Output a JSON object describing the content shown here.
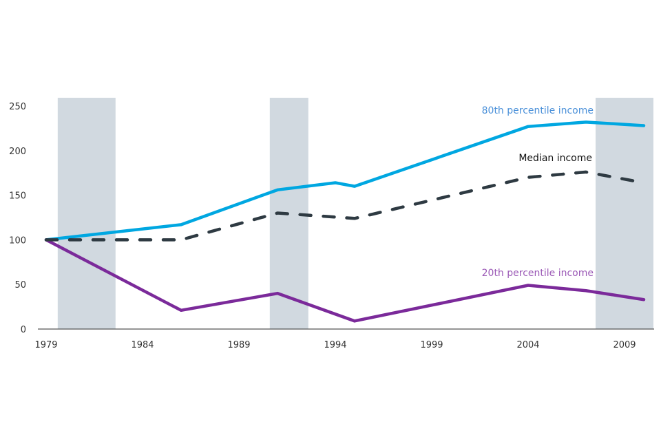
{
  "chart_data": {
    "type": "line",
    "title": "",
    "xlabel": "",
    "ylabel": "",
    "xlim": [
      1979,
      2010.5
    ],
    "ylim": [
      0,
      250
    ],
    "x_ticks": [
      "1979",
      "1984",
      "1989",
      "1994",
      "1999",
      "2004",
      "2009"
    ],
    "y_ticks": [
      "0",
      "50",
      "100",
      "150",
      "200",
      "250"
    ],
    "grid": false,
    "shaded_periods": [
      [
        1979.6,
        1982.6
      ],
      [
        1990.6,
        1992.6
      ],
      [
        2007.5,
        2010.5
      ]
    ],
    "series": [
      {
        "name": "80th percentile income",
        "color": "#00a7e1",
        "label_color": "#4a90d9",
        "dashed": false,
        "x": [
          1979,
          1986,
          1991,
          1994,
          1995,
          2004,
          2007,
          2010
        ],
        "y": [
          100,
          117,
          156,
          164,
          160,
          227,
          232,
          228
        ]
      },
      {
        "name": "Median income",
        "color": "#2e3a42",
        "label_color": "#111111",
        "dashed": true,
        "x": [
          1979,
          1986,
          1991,
          1995,
          2004,
          2007,
          2010
        ],
        "y": [
          100,
          100,
          130,
          124,
          170,
          176,
          164
        ]
      },
      {
        "name": "20th percentile income",
        "color": "#7b2a9a",
        "label_color": "#9b59b6",
        "dashed": false,
        "x": [
          1979,
          1986,
          1991,
          1995,
          2004,
          2007,
          2010
        ],
        "y": [
          100,
          21,
          40,
          9,
          49,
          43,
          33
        ]
      }
    ]
  }
}
